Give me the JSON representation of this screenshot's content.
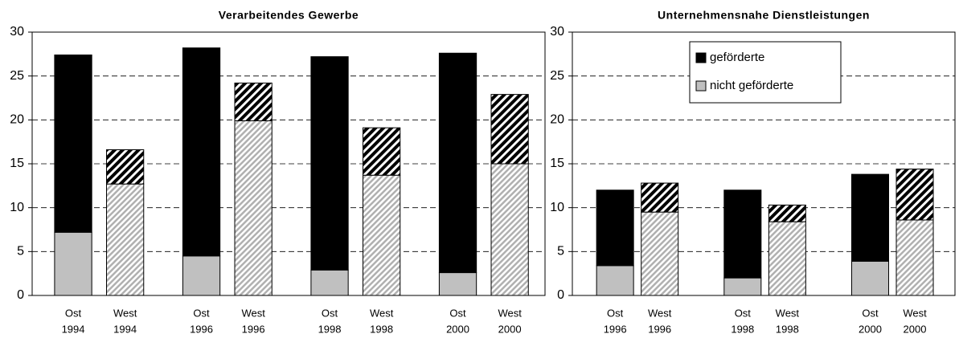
{
  "chart_data": [
    {
      "type": "stacked-bar",
      "title": "Verarbeitendes Gewerbe",
      "categories": [
        [
          "Ost",
          "1994"
        ],
        [
          "West",
          "1994"
        ],
        [
          "Ost",
          "1996"
        ],
        [
          "West",
          "1996"
        ],
        [
          "Ost",
          "1998"
        ],
        [
          "West",
          "1998"
        ],
        [
          "Ost",
          "2000"
        ],
        [
          "West",
          "2000"
        ]
      ],
      "series": [
        {
          "name": "nicht geförderte",
          "color": "#c0c0c0",
          "values": [
            7.2,
            12.7,
            4.5,
            19.9,
            2.9,
            13.7,
            2.6,
            15.0
          ]
        },
        {
          "name": "geförderte",
          "color": "#000000",
          "values": [
            20.2,
            3.9,
            23.7,
            4.3,
            24.3,
            5.4,
            25.0,
            7.9
          ]
        }
      ],
      "ylim": [
        0,
        30
      ],
      "yticks": [
        0,
        5,
        10,
        15,
        20,
        25,
        30
      ],
      "grid": true,
      "legend": false
    },
    {
      "type": "stacked-bar",
      "title": "Unternehmensnahe Dienstleistungen",
      "categories": [
        [
          "Ost",
          "1996"
        ],
        [
          "West",
          "1996"
        ],
        [
          "Ost",
          "1998"
        ],
        [
          "West",
          "1998"
        ],
        [
          "Ost",
          "2000"
        ],
        [
          "West",
          "2000"
        ]
      ],
      "series": [
        {
          "name": "nicht geförderte",
          "color": "#c0c0c0",
          "values": [
            3.4,
            9.5,
            2.0,
            8.4,
            3.9,
            8.6
          ]
        },
        {
          "name": "geförderte",
          "color": "#000000",
          "values": [
            8.6,
            3.3,
            10.0,
            1.9,
            9.9,
            5.8
          ]
        }
      ],
      "ylim": [
        0,
        30
      ],
      "yticks": [
        0,
        5,
        10,
        15,
        20,
        25,
        30
      ],
      "grid": true,
      "legend": "upper center"
    }
  ]
}
